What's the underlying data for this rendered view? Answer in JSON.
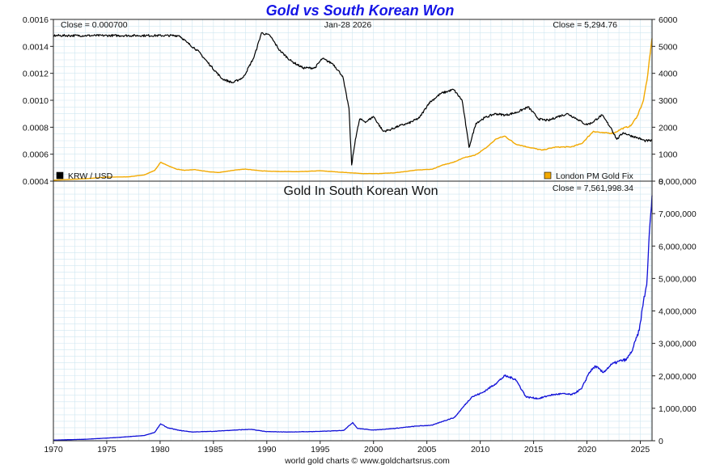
{
  "chart_data": [
    {
      "type": "line",
      "title": "Gold vs South Korean Won",
      "date_label": "Jan-28  2026",
      "left_close_label": "Close = 0.000700",
      "right_close_label": "Close = 5,294.76",
      "x_ticks": [
        "1970",
        "1975",
        "1980",
        "1985",
        "1990",
        "1995",
        "2000",
        "2005",
        "2010",
        "2015",
        "2020",
        "2025"
      ],
      "xlim": [
        1970,
        2026.1
      ],
      "ylim_left": [
        0.0004,
        0.0016
      ],
      "left_ticks": [
        "0.0004",
        "0.0006",
        "0.0008",
        "0.0010",
        "0.0012",
        "0.0014",
        "0.0016"
      ],
      "ylim_right": [
        0,
        6000
      ],
      "right_ticks": [
        "0",
        "1000",
        "2000",
        "3000",
        "4000",
        "5000",
        "6000"
      ],
      "series": [
        {
          "name": "KRW / USD",
          "axis": "left",
          "color": "#000000",
          "x": [
            1970,
            1981.8,
            1982.5,
            1983.5,
            1984.8,
            1985.8,
            1986.8,
            1987.8,
            1988.8,
            1989.5,
            1990.3,
            1991.2,
            1992.3,
            1993.4,
            1994.5,
            1995.2,
            1996.2,
            1997.1,
            1997.7,
            1997.95,
            1998.3,
            1998.7,
            1999.3,
            2000,
            2000.9,
            2001.5,
            2002.4,
            2003.3,
            2004.3,
            2005.2,
            2006.3,
            2007.5,
            2008.3,
            2008.7,
            2008.95,
            2009.6,
            2010.4,
            2011.4,
            2012.4,
            2013.4,
            2014.5,
            2015.5,
            2016.4,
            2017.3,
            2018.2,
            2019.1,
            2019.9,
            2020.4,
            2021.4,
            2022.3,
            2022.8,
            2023.4,
            2024,
            2024.8,
            2025.4,
            2026.1
          ],
          "values": [
            0.00148,
            0.00148,
            0.00143,
            0.00137,
            0.00125,
            0.00116,
            0.00113,
            0.00117,
            0.00132,
            0.0015,
            0.00148,
            0.00137,
            0.00129,
            0.00124,
            0.00124,
            0.00131,
            0.00127,
            0.00118,
            0.00094,
            0.00052,
            0.00071,
            0.00086,
            0.00084,
            0.00088,
            0.00077,
            0.00078,
            0.00081,
            0.00083,
            0.00087,
            0.00098,
            0.00105,
            0.00108,
            0.001,
            0.00079,
            0.00065,
            0.00083,
            0.00087,
            0.0009,
            0.00089,
            0.00091,
            0.00095,
            0.00086,
            0.00085,
            0.00088,
            0.0009,
            0.00086,
            0.00082,
            0.00083,
            0.00089,
            0.00079,
            0.00071,
            0.00076,
            0.00074,
            0.00072,
            0.0007,
            0.0007
          ]
        },
        {
          "name": "London PM Gold Fix",
          "axis": "right",
          "color": "#f2a900",
          "x": [
            1970,
            1973,
            1975,
            1977,
            1978.5,
            1979.5,
            1980.05,
            1980.6,
            1981.5,
            1982.3,
            1983.2,
            1984.5,
            1985.5,
            1986.8,
            1988,
            1989.5,
            1991,
            1993,
            1995,
            1997,
            1999,
            2000.5,
            2002,
            2004,
            2005.5,
            2006.5,
            2007.5,
            2008.5,
            2009.5,
            2010.5,
            2011.5,
            2012.3,
            2013.3,
            2014.5,
            2015.8,
            2017,
            2018.5,
            2019.5,
            2020.6,
            2021.5,
            2022.5,
            2023.3,
            2024.1,
            2024.7,
            2025.3,
            2025.7,
            2026.1
          ],
          "values": [
            35,
            90,
            150,
            160,
            230,
            400,
            700,
            600,
            450,
            400,
            430,
            350,
            320,
            400,
            450,
            380,
            360,
            350,
            385,
            330,
            280,
            280,
            310,
            410,
            445,
            600,
            700,
            870,
            960,
            1220,
            1570,
            1670,
            1380,
            1260,
            1150,
            1260,
            1270,
            1390,
            1850,
            1790,
            1780,
            1950,
            2050,
            2400,
            3000,
            3950,
            5294.76
          ]
        }
      ]
    },
    {
      "type": "line",
      "title": "Gold In South Korean Won",
      "close_label": "Close = 7,561,998.34",
      "x_ticks": [
        "1970",
        "1975",
        "1980",
        "1985",
        "1990",
        "1995",
        "2000",
        "2005",
        "2010",
        "2015",
        "2020",
        "2025"
      ],
      "xlim": [
        1970,
        2026.1
      ],
      "ylim": [
        0,
        8000000
      ],
      "y_ticks": [
        "0",
        "1,000,000",
        "2,000,000",
        "3,000,000",
        "4,000,000",
        "5,000,000",
        "6,000,000",
        "7,000,000",
        "8,000,000"
      ],
      "series": [
        {
          "name": "Gold In South Korean Won",
          "color": "#1010d8",
          "x": [
            1970,
            1973,
            1976,
            1978.5,
            1979.5,
            1980.05,
            1980.7,
            1981.8,
            1983,
            1985,
            1987,
            1988.5,
            1990,
            1992,
            1994,
            1996,
            1997.2,
            1998.05,
            1998.5,
            2000,
            2002,
            2004,
            2005.5,
            2006.5,
            2007.6,
            2008.5,
            2009.2,
            2010.2,
            2011.4,
            2012.3,
            2013.3,
            2014.3,
            2015.5,
            2016.5,
            2017.6,
            2018.6,
            2019.5,
            2020.2,
            2020.8,
            2021.5,
            2022.3,
            2023,
            2023.7,
            2024.2,
            2024.9,
            2025.3,
            2025.6,
            2025.8,
            2026.1
          ],
          "values": [
            20000,
            45000,
            100000,
            160000,
            260000,
            520000,
            400000,
            320000,
            270000,
            290000,
            330000,
            350000,
            280000,
            270000,
            280000,
            300000,
            320000,
            560000,
            380000,
            330000,
            380000,
            450000,
            480000,
            600000,
            720000,
            1080000,
            1350000,
            1480000,
            1750000,
            2000000,
            1900000,
            1350000,
            1300000,
            1400000,
            1450000,
            1420000,
            1600000,
            2100000,
            2300000,
            2100000,
            2350000,
            2450000,
            2500000,
            2750000,
            3400000,
            4300000,
            4800000,
            6100000,
            7561998.34
          ]
        }
      ]
    }
  ],
  "footer": "world gold charts © www.goldchartsrus.com",
  "colors": {
    "krw": "#000000",
    "gold": "#f2a900",
    "gold_krw": "#1010d8",
    "title": "#1515e6"
  }
}
